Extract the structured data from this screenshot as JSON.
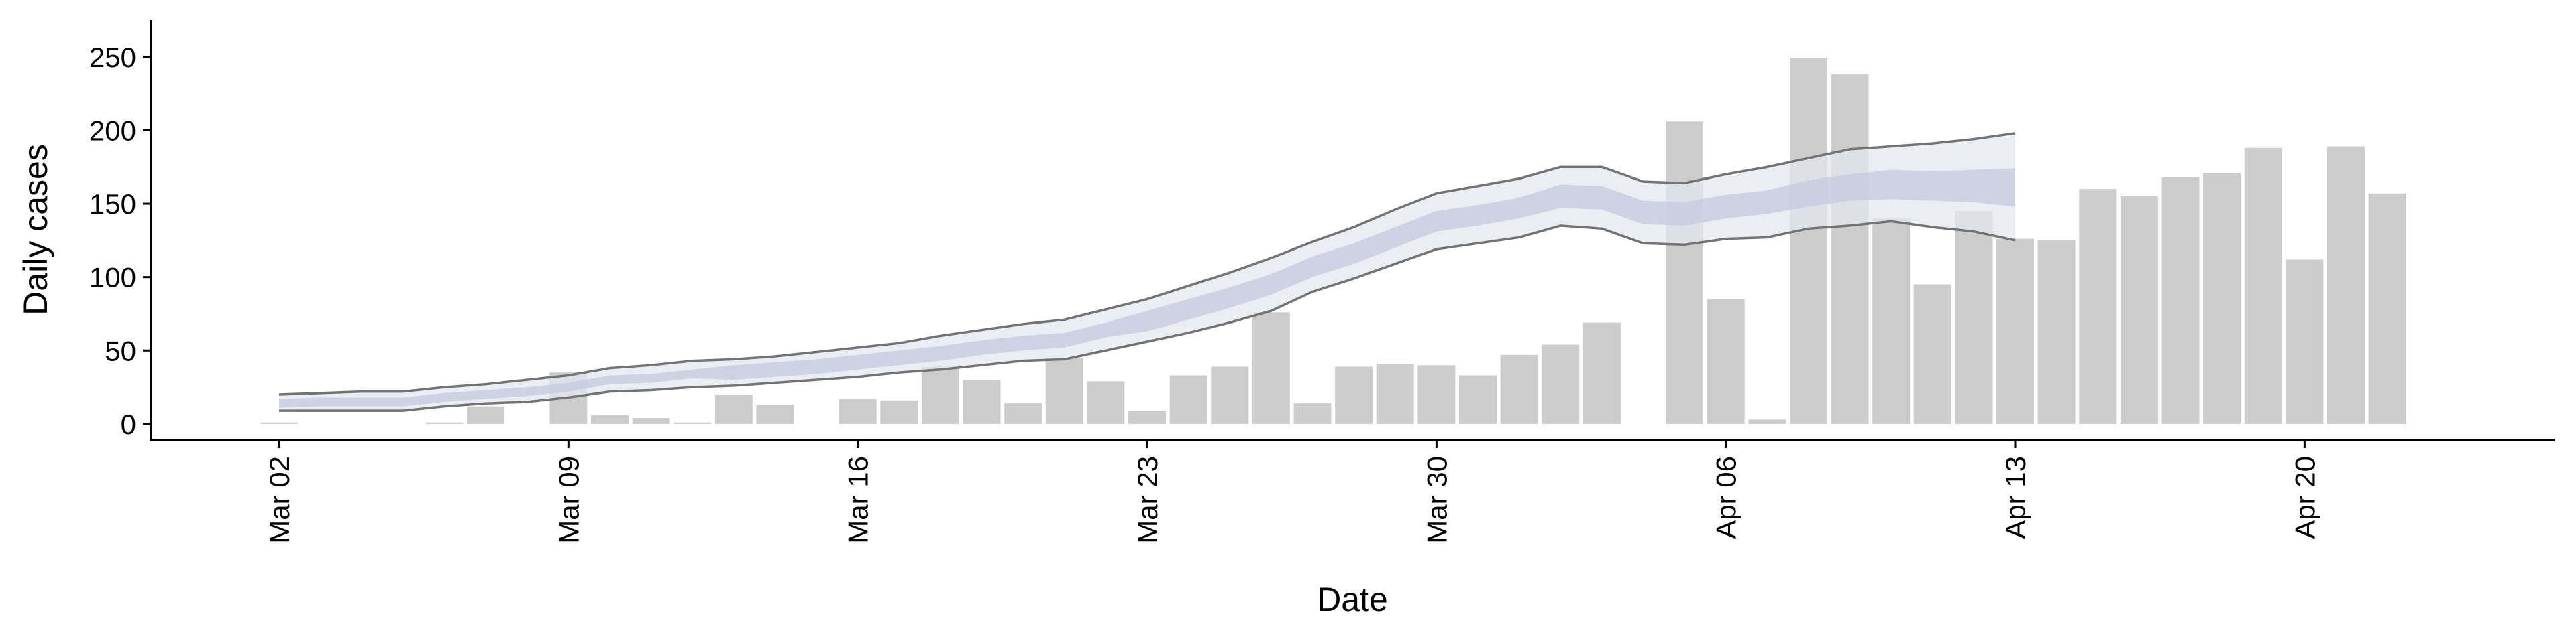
{
  "chart_data": {
    "type": "bar",
    "x_label": "Date",
    "y_label": "Daily cases",
    "categories": [
      "Mar 02",
      null,
      null,
      null,
      null,
      null,
      null,
      "Mar 09",
      null,
      null,
      null,
      null,
      null,
      null,
      "Mar 16",
      null,
      null,
      null,
      null,
      null,
      null,
      "Mar 23",
      null,
      null,
      null,
      null,
      null,
      null,
      "Mar 30",
      null,
      null,
      null,
      null,
      null,
      null,
      "Apr 06",
      null,
      null,
      null,
      null,
      null,
      null,
      "Apr 13",
      null,
      null,
      null,
      null,
      null,
      null,
      "Apr 20",
      null,
      null
    ],
    "values": [
      1,
      0,
      0,
      0,
      1,
      12,
      0,
      35,
      6,
      4,
      1,
      20,
      13,
      0,
      17,
      16,
      39,
      30,
      14,
      45,
      29,
      9,
      33,
      39,
      76,
      14,
      39,
      41,
      40,
      33,
      47,
      54,
      69,
      0,
      206,
      85,
      3,
      249,
      238,
      140,
      95,
      145,
      126,
      125,
      160,
      155,
      168,
      171,
      188,
      112,
      189,
      157
    ],
    "color": "#cccccc",
    "ylim": [
      -11,
      275
    ],
    "yticks": [
      0,
      50,
      100,
      150,
      200,
      250
    ],
    "bands": [
      {
        "color": "#e4e7f0",
        "upper": [
          20,
          21,
          22,
          22,
          25,
          27,
          30,
          33,
          38,
          40,
          43,
          44,
          46,
          49,
          52,
          55,
          60,
          64,
          68,
          71,
          78,
          85,
          94,
          103,
          113,
          124,
          134,
          146,
          157,
          162,
          167,
          175,
          175,
          165,
          164,
          170,
          175,
          181,
          187,
          189,
          191,
          194,
          198,
          null,
          null,
          null,
          null,
          null,
          null,
          null,
          null,
          null
        ],
        "lower": [
          9,
          9,
          9,
          9,
          12,
          14,
          15,
          18,
          22,
          23,
          25,
          26,
          28,
          30,
          32,
          35,
          37,
          40,
          43,
          44,
          50,
          56,
          62,
          69,
          77,
          90,
          99,
          109,
          119,
          123,
          127,
          135,
          133,
          123,
          122,
          126,
          127,
          133,
          135,
          138,
          134,
          131,
          125,
          null,
          null,
          null,
          null,
          null,
          null,
          null,
          null,
          null
        ]
      },
      {
        "color": "#c4cadf",
        "upper": [
          17,
          18,
          18,
          18,
          21,
          23,
          25,
          28,
          33,
          34,
          37,
          40,
          42,
          44,
          47,
          50,
          53,
          57,
          60,
          62,
          69,
          77,
          85,
          93,
          102,
          114,
          123,
          134,
          145,
          149,
          154,
          163,
          162,
          152,
          151,
          156,
          159,
          166,
          170,
          173,
          172,
          173,
          174,
          null,
          null,
          null,
          null,
          null,
          null,
          null,
          null,
          null
        ],
        "lower": [
          11,
          12,
          12,
          12,
          15,
          17,
          19,
          22,
          27,
          28,
          31,
          30,
          32,
          34,
          37,
          40,
          43,
          47,
          50,
          52,
          59,
          63,
          71,
          79,
          88,
          100,
          109,
          120,
          131,
          135,
          140,
          147,
          146,
          136,
          135,
          140,
          143,
          148,
          152,
          153,
          152,
          151,
          148,
          null,
          null,
          null,
          null,
          null,
          null,
          null,
          null,
          null
        ]
      }
    ],
    "line_color": "#737373"
  }
}
